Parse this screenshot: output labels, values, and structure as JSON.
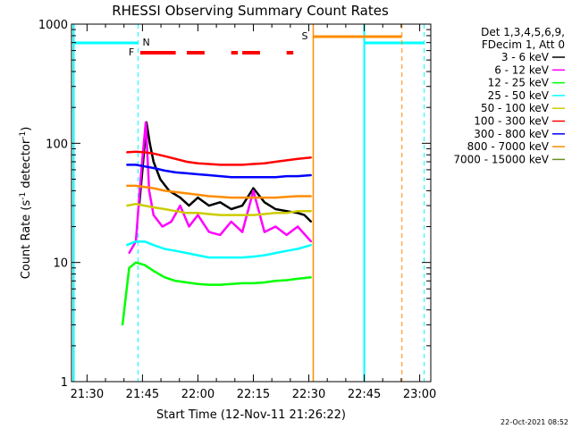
{
  "chart_data": {
    "type": "line",
    "title": "RHESSI Observing Summary Count Rates",
    "xlabel": "Start Time (12-Nov-11 21:26:22)",
    "ylabel_main": "Count Rate (s",
    "ylabel_sup1": "-1",
    "ylabel_mid": " detector",
    "ylabel_sup2": "-1",
    "ylabel_end": ")",
    "y_scale": "log",
    "ylim": [
      1,
      1000
    ],
    "xlim_minutes": [
      21.43,
      23.05
    ],
    "x_ticks": [
      {
        "label": "21:30",
        "t": 21.5
      },
      {
        "label": "21:45",
        "t": 21.75
      },
      {
        "label": "22:00",
        "t": 22.0
      },
      {
        "label": "22:15",
        "t": 22.25
      },
      {
        "label": "22:30",
        "t": 22.5
      },
      {
        "label": "22:45",
        "t": 22.75
      },
      {
        "label": "23:00",
        "t": 23.0
      }
    ],
    "y_ticks": [
      {
        "label": "1",
        "v": 1
      },
      {
        "label": "10",
        "v": 10
      },
      {
        "label": "100",
        "v": 100
      },
      {
        "label": "1000",
        "v": 1000
      }
    ],
    "legend_header": [
      "Det 1,3,4,5,6,9,",
      "FDecim 1, Att 0"
    ],
    "legend_placement": "right",
    "series": [
      {
        "name": "3 - 6 keV",
        "color": "#000000",
        "x": [
          21.735,
          21.75,
          21.768,
          21.783,
          21.8,
          21.83,
          21.87,
          21.92,
          21.96,
          22.0,
          22.05,
          22.1,
          22.15,
          22.2,
          22.25,
          22.3,
          22.35,
          22.4,
          22.45,
          22.48,
          22.51
        ],
        "y": [
          30,
          60,
          150,
          100,
          70,
          50,
          40,
          35,
          30,
          35,
          30,
          32,
          28,
          30,
          42,
          32,
          28,
          27,
          26,
          25,
          22
        ]
      },
      {
        "name": "6 - 12 keV",
        "color": "#ff00ff",
        "x": [
          21.69,
          21.72,
          21.745,
          21.765,
          21.78,
          21.8,
          21.84,
          21.88,
          21.92,
          21.96,
          22.0,
          22.05,
          22.1,
          22.15,
          22.2,
          22.25,
          22.3,
          22.35,
          22.4,
          22.45,
          22.51
        ],
        "y": [
          12,
          15,
          60,
          150,
          40,
          25,
          20,
          22,
          30,
          20,
          25,
          18,
          17,
          22,
          18,
          40,
          18,
          20,
          17,
          20,
          15
        ]
      },
      {
        "name": "12 - 25 keV",
        "color": "#00ff00",
        "x": [
          21.66,
          21.69,
          21.72,
          21.76,
          21.8,
          21.85,
          21.9,
          21.95,
          22.0,
          22.05,
          22.1,
          22.15,
          22.2,
          22.25,
          22.3,
          22.35,
          22.4,
          22.45,
          22.51
        ],
        "y": [
          3,
          9,
          10,
          9.5,
          8.5,
          7.5,
          7,
          6.8,
          6.6,
          6.5,
          6.5,
          6.6,
          6.7,
          6.7,
          6.8,
          7,
          7.1,
          7.3,
          7.5
        ]
      },
      {
        "name": "25 - 50 keV",
        "color": "#00ffff",
        "x": [
          21.68,
          21.72,
          21.76,
          21.8,
          21.85,
          21.9,
          21.95,
          22.0,
          22.05,
          22.1,
          22.15,
          22.2,
          22.25,
          22.3,
          22.35,
          22.4,
          22.45,
          22.51
        ],
        "y": [
          14,
          15,
          15,
          14,
          13,
          12.5,
          12,
          11.5,
          11,
          11,
          11,
          11,
          11.2,
          11.5,
          12,
          12.5,
          13,
          14
        ]
      },
      {
        "name": "50 - 100 keV",
        "color": "#cccc00",
        "x": [
          21.68,
          21.72,
          21.76,
          21.8,
          21.85,
          21.9,
          21.95,
          22.0,
          22.05,
          22.1,
          22.15,
          22.2,
          22.25,
          22.3,
          22.35,
          22.4,
          22.45,
          22.51
        ],
        "y": [
          30,
          31,
          30,
          29,
          28,
          27,
          26,
          26,
          25.5,
          25,
          25,
          25,
          25,
          25.5,
          26,
          26,
          27,
          27
        ]
      },
      {
        "name": "100 - 300 keV",
        "color": "#ff0000",
        "x": [
          21.68,
          21.72,
          21.76,
          21.8,
          21.85,
          21.9,
          21.95,
          22.0,
          22.05,
          22.1,
          22.15,
          22.2,
          22.25,
          22.3,
          22.35,
          22.4,
          22.45,
          22.51
        ],
        "y": [
          84,
          85,
          84,
          82,
          78,
          74,
          70,
          68,
          67,
          66,
          66,
          66,
          67,
          68,
          70,
          72,
          74,
          76
        ]
      },
      {
        "name": "300 - 800 keV",
        "color": "#0000ff",
        "x": [
          21.68,
          21.72,
          21.76,
          21.8,
          21.85,
          21.9,
          21.95,
          22.0,
          22.05,
          22.1,
          22.15,
          22.2,
          22.25,
          22.3,
          22.35,
          22.4,
          22.45,
          22.51
        ],
        "y": [
          66,
          66,
          64,
          62,
          59,
          57,
          56,
          55,
          54,
          53,
          52,
          52,
          52,
          52,
          52,
          53,
          53,
          54
        ]
      },
      {
        "name": "800 - 7000 keV",
        "color": "#ff8c00",
        "x": [
          21.68,
          21.72,
          21.76,
          21.8,
          21.85,
          21.9,
          21.95,
          22.0,
          22.05,
          22.1,
          22.15,
          22.2,
          22.25,
          22.3,
          22.35,
          22.4,
          22.45,
          22.51
        ],
        "y": [
          44,
          44,
          43,
          42,
          40,
          39,
          38,
          37,
          36,
          35.5,
          35,
          35,
          35,
          35,
          35,
          35.5,
          36,
          36
        ]
      },
      {
        "name": "7000 - 15000 keV",
        "color": "#6b8e23",
        "x": [],
        "y": []
      }
    ],
    "flags": {
      "night": {
        "label": "N",
        "color": "#00ffff",
        "segments": [
          [
            21.44,
            21.73
          ],
          [
            22.75,
            23.02
          ]
        ],
        "boundaries_solid": [
          21.44,
          22.75
        ],
        "boundaries_dashed": [
          21.73,
          23.02
        ]
      },
      "saa": {
        "label": "S",
        "color": "#ff8c00",
        "segments": [
          [
            22.52,
            22.92
          ]
        ],
        "boundaries_solid": [
          22.52
        ],
        "boundaries_dashed": [
          22.92
        ]
      },
      "flare": {
        "label": "F",
        "color": "#ff0000",
        "segments": [
          [
            21.74,
            21.9
          ],
          [
            21.95,
            22.03
          ],
          [
            22.15,
            22.18
          ],
          [
            22.2,
            22.28
          ],
          [
            22.4,
            22.43
          ]
        ]
      }
    }
  },
  "footer_date": "22-Oct-2021 08:52"
}
